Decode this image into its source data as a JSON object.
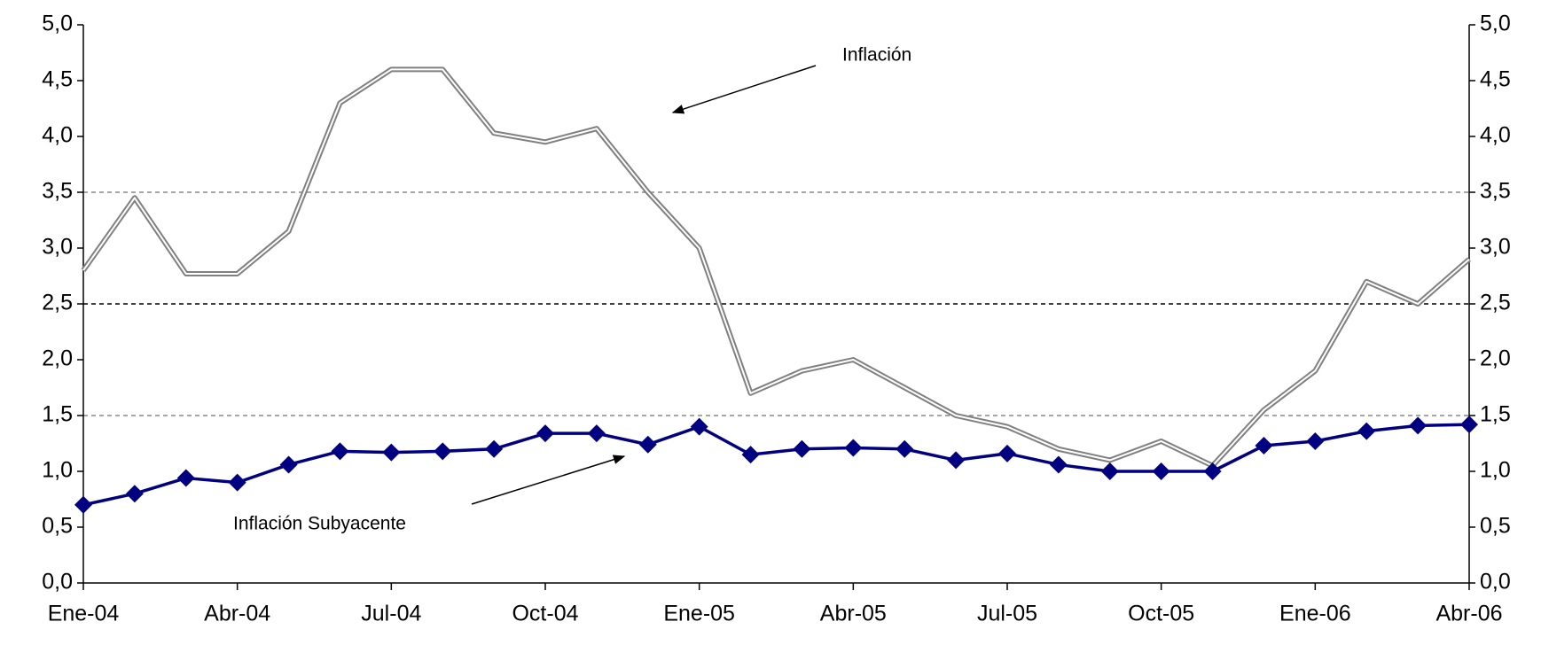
{
  "chart_data": {
    "type": "line",
    "categories": [
      "Ene-04",
      null,
      null,
      "Abr-04",
      null,
      null,
      "Jul-04",
      null,
      null,
      "Oct-04",
      null,
      null,
      "Ene-05",
      null,
      null,
      "Abr-05",
      null,
      null,
      "Jul-05",
      null,
      null,
      "Oct-05",
      null,
      null,
      "Ene-06",
      null,
      null,
      "Abr-06"
    ],
    "series": [
      {
        "name": "Inflación",
        "color": "#808080",
        "values": [
          2.8,
          3.45,
          2.77,
          2.77,
          3.15,
          4.3,
          4.6,
          4.6,
          4.03,
          3.95,
          4.07,
          3.5,
          3.0,
          1.7,
          1.9,
          2.0,
          1.75,
          1.5,
          1.4,
          1.2,
          1.1,
          1.27,
          1.05,
          1.55,
          1.9,
          2.7,
          2.5,
          2.9
        ]
      },
      {
        "name": "Inflación Subyacente",
        "color": "#000080",
        "values": [
          0.7,
          0.8,
          0.94,
          0.9,
          1.06,
          1.18,
          1.17,
          1.18,
          1.2,
          1.34,
          1.34,
          1.24,
          1.4,
          1.15,
          1.2,
          1.21,
          1.2,
          1.1,
          1.16,
          1.06,
          1.0,
          1.0,
          1.0,
          1.23,
          1.27,
          1.36,
          1.41,
          1.42
        ]
      }
    ],
    "ylim": [
      0,
      5
    ],
    "yticks": [
      {
        "value": 0,
        "label": "0,0"
      },
      {
        "value": 0.5,
        "label": "0,5"
      },
      {
        "value": 1,
        "label": "1,0"
      },
      {
        "value": 1.5,
        "label": "1,5"
      },
      {
        "value": 2,
        "label": "2,0"
      },
      {
        "value": 2.5,
        "label": "2,5"
      },
      {
        "value": 3,
        "label": "3,0"
      },
      {
        "value": 3.5,
        "label": "3,5"
      },
      {
        "value": 4,
        "label": "4,0"
      },
      {
        "value": 4.5,
        "label": "4,5"
      },
      {
        "value": 5,
        "label": "5,0"
      }
    ],
    "y2lim": [
      0,
      5
    ],
    "y2ticks": [
      {
        "value": 0,
        "label": "0,0"
      },
      {
        "value": 0.5,
        "label": "0,5"
      },
      {
        "value": 1,
        "label": "1,0"
      },
      {
        "value": 1.5,
        "label": "1,5"
      },
      {
        "value": 2,
        "label": "2,0"
      },
      {
        "value": 2.5,
        "label": "2,5"
      },
      {
        "value": 3,
        "label": "3,0"
      },
      {
        "value": 3.5,
        "label": "3,5"
      },
      {
        "value": 4,
        "label": "4,0"
      },
      {
        "value": 4.5,
        "label": "4,5"
      },
      {
        "value": 5,
        "label": "5,0"
      }
    ],
    "reference_lines": [
      1.5,
      2.5,
      3.5
    ]
  }
}
